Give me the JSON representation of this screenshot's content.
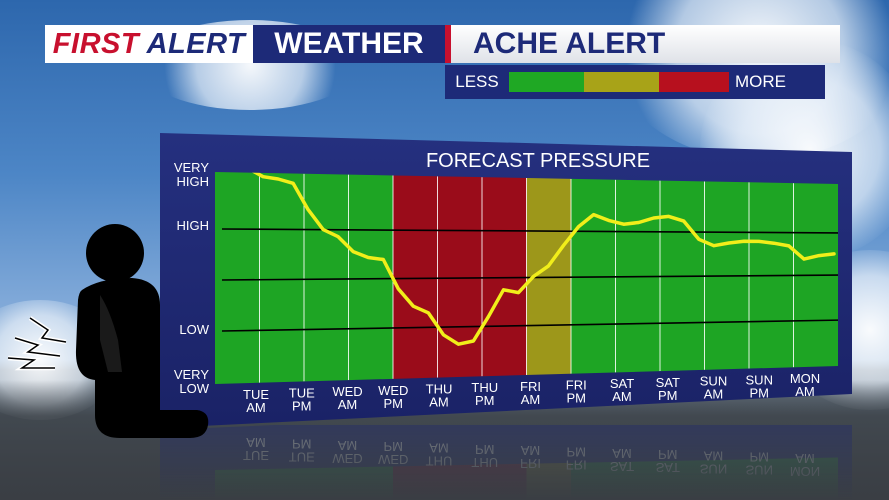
{
  "header": {
    "first": "FIRST",
    "alert": "ALERT",
    "weather": "WEATHER",
    "title": "ACHE ALERT"
  },
  "legend": {
    "less": "LESS",
    "more": "MORE",
    "colors": [
      "#1fa824",
      "#a8a318",
      "#b7101e"
    ]
  },
  "colors": {
    "brand_blue": "#1d2a78",
    "brand_red": "#c8102e",
    "green": "#1ea524",
    "red": "#9a0c1a",
    "olive": "#9d971a",
    "line": "#f1ee1a"
  },
  "icons": {
    "person": "person-kneeling-icon",
    "pain": "lightning-pain-icon"
  },
  "chart_data": {
    "type": "line",
    "title": "FORECAST PRESSURE",
    "y_tick_labels": [
      {
        "line1": "VERY",
        "line2": "HIGH"
      },
      {
        "line1": "HIGH",
        "line2": ""
      },
      {
        "line1": "LOW",
        "line2": ""
      },
      {
        "line1": "VERY",
        "line2": "LOW"
      }
    ],
    "periods": [
      {
        "d": "TUE",
        "t": "AM"
      },
      {
        "d": "TUE",
        "t": "PM"
      },
      {
        "d": "WED",
        "t": "AM"
      },
      {
        "d": "WED",
        "t": "PM"
      },
      {
        "d": "THU",
        "t": "AM"
      },
      {
        "d": "THU",
        "t": "PM"
      },
      {
        "d": "FRI",
        "t": "AM"
      },
      {
        "d": "FRI",
        "t": "PM"
      },
      {
        "d": "SAT",
        "t": "AM"
      },
      {
        "d": "SAT",
        "t": "PM"
      },
      {
        "d": "SUN",
        "t": "AM"
      },
      {
        "d": "SUN",
        "t": "PM"
      },
      {
        "d": "MON",
        "t": "AM"
      }
    ],
    "band_levels": [
      "green",
      "green",
      "green",
      "green",
      "red",
      "red",
      "red",
      "olive",
      "green",
      "green",
      "green",
      "green",
      "green",
      "green"
    ],
    "level_scale": "0 = very low, 3 = very high",
    "pressure": [
      2.6,
      2.65,
      2.6,
      2.52,
      2.5,
      2.46,
      2.2,
      2.0,
      1.93,
      1.78,
      1.72,
      1.7,
      1.4,
      1.22,
      1.15,
      0.92,
      0.82,
      0.85,
      1.1,
      1.38,
      1.35,
      1.52,
      1.63,
      1.85,
      2.05,
      2.18,
      2.12,
      2.08,
      2.1,
      2.15,
      2.17,
      2.12,
      1.92,
      1.85,
      1.88,
      1.9,
      1.9,
      1.88,
      1.85,
      1.7,
      1.74,
      1.76
    ]
  }
}
